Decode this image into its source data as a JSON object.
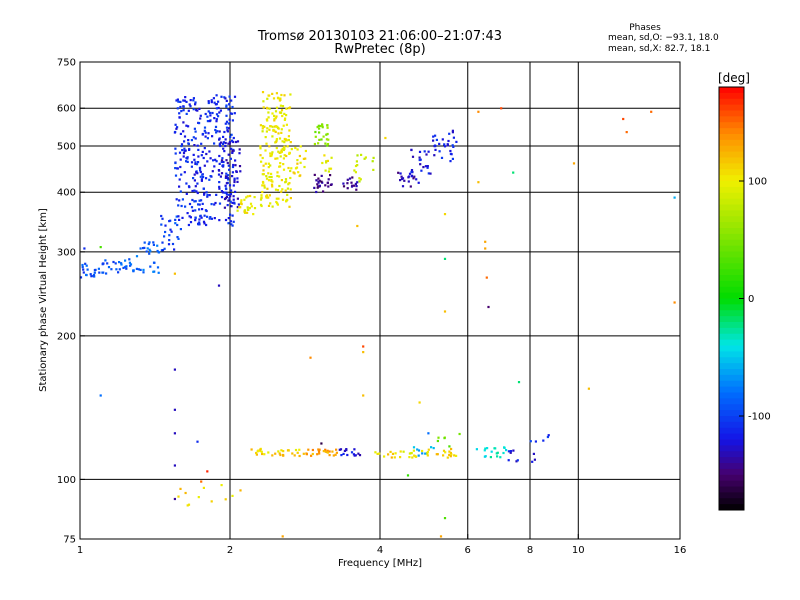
{
  "header": {
    "title": "Tromsø 20130103 21:06:00–21:07:43",
    "subtitle": "RwPretec (8p)",
    "phases_heading": "Phases",
    "stat_o": "mean, sd,O: −93.1, 18.0",
    "stat_x": "mean, sd,X:  82.7, 18.1"
  },
  "colorbar": {
    "unit": "[deg]",
    "range": [
      -180,
      180
    ],
    "ticks": [
      100,
      0,
      -100
    ]
  },
  "chart_data": {
    "type": "scatter",
    "xlabel": "Frequency [MHz]",
    "ylabel": "Stationary phase Virtual Height [km]",
    "xscale": "log",
    "yscale": "log",
    "xlim": [
      1,
      16
    ],
    "ylim": [
      75,
      750
    ],
    "xticks": [
      1,
      2,
      4,
      6,
      8,
      10,
      16
    ],
    "yticks": [
      75,
      100,
      200,
      300,
      400,
      500,
      600,
      750
    ],
    "xgrid": [
      2,
      4,
      6,
      8,
      10
    ],
    "ygrid": [
      100,
      200,
      300,
      400,
      500,
      600
    ],
    "grid": true,
    "color_by": "phase [deg]",
    "clusters": [
      {
        "f": [
          1.0,
          1.12
        ],
        "h": [
          265,
          285
        ],
        "phase": -95,
        "n": 25
      },
      {
        "f": [
          1.12,
          1.3
        ],
        "h": [
          270,
          290
        ],
        "phase": -90,
        "n": 25
      },
      {
        "f": [
          1.3,
          1.45
        ],
        "h": [
          270,
          320
        ],
        "phase": -85,
        "n": 30
      },
      {
        "f": [
          1.45,
          1.6
        ],
        "h": [
          300,
          360
        ],
        "phase": -100,
        "n": 25
      },
      {
        "f": [
          1.55,
          2.05
        ],
        "h": [
          340,
          640
        ],
        "phase": -112,
        "n": 340
      },
      {
        "f": [
          1.9,
          2.1
        ],
        "h": [
          370,
          520
        ],
        "phase": -125,
        "n": 60
      },
      {
        "f": [
          2.05,
          2.25
        ],
        "h": [
          360,
          395
        ],
        "phase": 100,
        "n": 25
      },
      {
        "f": [
          2.3,
          2.65
        ],
        "h": [
          370,
          650
        ],
        "phase": 100,
        "n": 200
      },
      {
        "f": [
          2.65,
          2.85
        ],
        "h": [
          430,
          500
        ],
        "phase": 105,
        "n": 20
      },
      {
        "f": [
          2.95,
          3.15
        ],
        "h": [
          500,
          560
        ],
        "phase": 55,
        "n": 25
      },
      {
        "f": [
          2.95,
          3.2
        ],
        "h": [
          400,
          440
        ],
        "phase": -145,
        "n": 25
      },
      {
        "f": [
          3.05,
          3.2
        ],
        "h": [
          440,
          480
        ],
        "phase": 95,
        "n": 10
      },
      {
        "f": [
          3.35,
          3.6
        ],
        "h": [
          405,
          430
        ],
        "phase": -140,
        "n": 15
      },
      {
        "f": [
          3.5,
          3.9
        ],
        "h": [
          420,
          480
        ],
        "phase": 85,
        "n": 15
      },
      {
        "f": [
          4.3,
          4.8
        ],
        "h": [
          410,
          450
        ],
        "phase": -135,
        "n": 20
      },
      {
        "f": [
          4.6,
          5.1
        ],
        "h": [
          430,
          500
        ],
        "phase": -120,
        "n": 20
      },
      {
        "f": [
          5.1,
          5.7
        ],
        "h": [
          460,
          540
        ],
        "phase": -115,
        "n": 30
      },
      {
        "f": [
          2.2,
          2.8
        ],
        "h": [
          112,
          116
        ],
        "phase": 110,
        "n": 30
      },
      {
        "f": [
          2.8,
          3.3
        ],
        "h": [
          112,
          116
        ],
        "phase": 130,
        "n": 25
      },
      {
        "f": [
          3.3,
          3.7
        ],
        "h": [
          112,
          116
        ],
        "phase": -120,
        "n": 15
      },
      {
        "f": [
          3.9,
          4.4
        ],
        "h": [
          111,
          115
        ],
        "phase": 110,
        "n": 12
      },
      {
        "f": [
          4.4,
          5.0
        ],
        "h": [
          111,
          115
        ],
        "phase": 100,
        "n": 15
      },
      {
        "f": [
          4.6,
          5.2
        ],
        "h": [
          112,
          117
        ],
        "phase": -60,
        "n": 8
      },
      {
        "f": [
          5.0,
          5.7
        ],
        "h": [
          111,
          116
        ],
        "phase": 110,
        "n": 15
      },
      {
        "f": [
          5.2,
          5.8
        ],
        "h": [
          117,
          125
        ],
        "phase": 45,
        "n": 6
      },
      {
        "f": [
          6.2,
          7.3
        ],
        "h": [
          111,
          117
        ],
        "phase": -40,
        "n": 18
      },
      {
        "f": [
          7.2,
          8.3
        ],
        "h": [
          108,
          116
        ],
        "phase": -120,
        "n": 10
      },
      {
        "f": [
          8.0,
          9.0
        ],
        "h": [
          119,
          124
        ],
        "phase": -110,
        "n": 5
      },
      {
        "f": [
          1.5,
          2.1
        ],
        "h": [
          88,
          98
        ],
        "phase": 110,
        "n": 12
      }
    ],
    "points": [
      {
        "f": 1.02,
        "h": 305,
        "phase": -110
      },
      {
        "f": 1.1,
        "h": 307,
        "phase": 30
      },
      {
        "f": 1.1,
        "h": 150,
        "phase": -80
      },
      {
        "f": 1.55,
        "h": 270,
        "phase": 120
      },
      {
        "f": 1.55,
        "h": 170,
        "phase": -130
      },
      {
        "f": 1.55,
        "h": 140,
        "phase": -130
      },
      {
        "f": 1.55,
        "h": 125,
        "phase": -130
      },
      {
        "f": 1.55,
        "h": 107,
        "phase": -130
      },
      {
        "f": 1.55,
        "h": 91,
        "phase": -140
      },
      {
        "f": 1.72,
        "h": 120,
        "phase": -110
      },
      {
        "f": 1.75,
        "h": 99,
        "phase": 150
      },
      {
        "f": 1.8,
        "h": 104,
        "phase": 170
      },
      {
        "f": 1.9,
        "h": 255,
        "phase": -130
      },
      {
        "f": 2.55,
        "h": 76,
        "phase": 130
      },
      {
        "f": 2.9,
        "h": 180,
        "phase": 140
      },
      {
        "f": 3.05,
        "h": 119,
        "phase": -160
      },
      {
        "f": 3.6,
        "h": 340,
        "phase": 120
      },
      {
        "f": 3.7,
        "h": 190,
        "phase": 160
      },
      {
        "f": 3.7,
        "h": 185,
        "phase": 120
      },
      {
        "f": 3.7,
        "h": 150,
        "phase": 120
      },
      {
        "f": 4.1,
        "h": 520,
        "phase": 110
      },
      {
        "f": 4.55,
        "h": 102,
        "phase": 20
      },
      {
        "f": 4.8,
        "h": 145,
        "phase": 110
      },
      {
        "f": 5.0,
        "h": 125,
        "phase": -80
      },
      {
        "f": 5.4,
        "h": 360,
        "phase": 110
      },
      {
        "f": 5.4,
        "h": 290,
        "phase": -20
      },
      {
        "f": 5.4,
        "h": 225,
        "phase": 120
      },
      {
        "f": 5.4,
        "h": 83,
        "phase": 30
      },
      {
        "f": 5.3,
        "h": 76,
        "phase": 130
      },
      {
        "f": 6.3,
        "h": 590,
        "phase": 140
      },
      {
        "f": 6.3,
        "h": 420,
        "phase": 120
      },
      {
        "f": 6.5,
        "h": 315,
        "phase": 130
      },
      {
        "f": 6.5,
        "h": 305,
        "phase": 130
      },
      {
        "f": 6.55,
        "h": 265,
        "phase": 150
      },
      {
        "f": 6.6,
        "h": 230,
        "phase": -150
      },
      {
        "f": 7.0,
        "h": 600,
        "phase": 160
      },
      {
        "f": 7.4,
        "h": 440,
        "phase": -20
      },
      {
        "f": 7.6,
        "h": 160,
        "phase": -20
      },
      {
        "f": 9.8,
        "h": 460,
        "phase": 130
      },
      {
        "f": 10.5,
        "h": 155,
        "phase": 120
      },
      {
        "f": 12.3,
        "h": 570,
        "phase": 160
      },
      {
        "f": 12.5,
        "h": 535,
        "phase": 150
      },
      {
        "f": 14.0,
        "h": 590,
        "phase": 150
      },
      {
        "f": 15.6,
        "h": 390,
        "phase": -60
      },
      {
        "f": 15.6,
        "h": 235,
        "phase": 140
      }
    ]
  }
}
